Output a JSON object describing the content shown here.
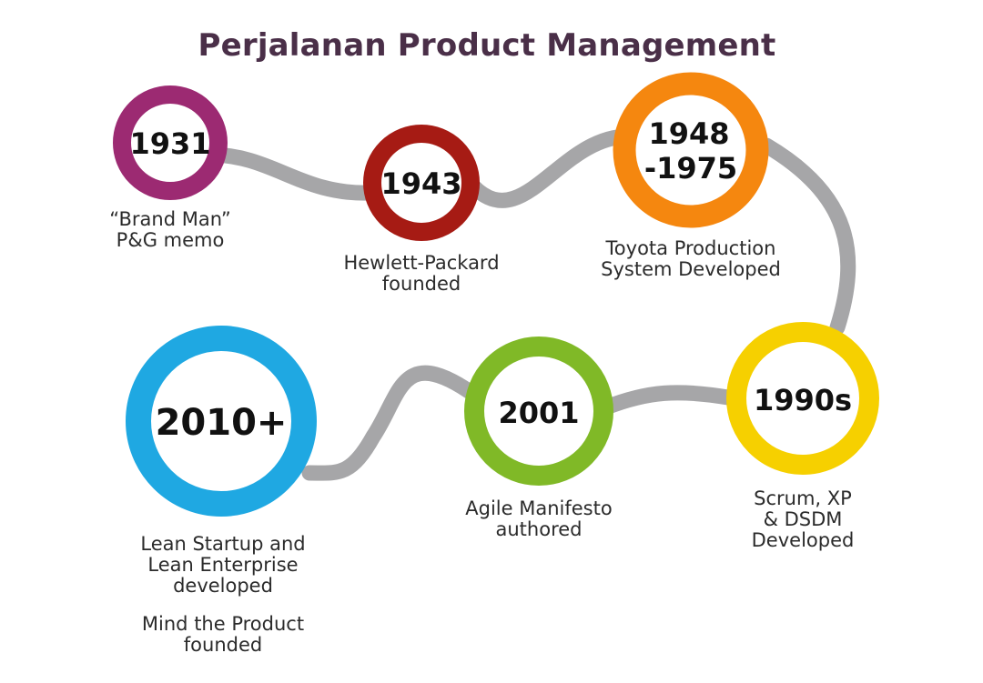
{
  "title": "Perjalanan Product Management",
  "colors": {
    "path": "#a6a6a8",
    "y1931": "#9c2a72",
    "y1943": "#a61b14",
    "y1948": "#f5870f",
    "y1990": "#f6d000",
    "y2001": "#80b927",
    "y2010": "#1fa8e2"
  },
  "milestones": [
    {
      "id": "1931",
      "year_lines": [
        "1931"
      ],
      "caption_lines": [
        "“Brand Man”",
        "P&G memo"
      ]
    },
    {
      "id": "1943",
      "year_lines": [
        "1943"
      ],
      "caption_lines": [
        "Hewlett-Packard",
        "founded"
      ]
    },
    {
      "id": "1948",
      "year_lines": [
        "1948",
        "-1975"
      ],
      "caption_lines": [
        "Toyota Production",
        "System Developed"
      ]
    },
    {
      "id": "1990",
      "year_lines": [
        "1990s"
      ],
      "caption_lines": [
        "Scrum, XP",
        "& DSDM",
        "Developed"
      ]
    },
    {
      "id": "2001",
      "year_lines": [
        "2001"
      ],
      "caption_lines": [
        "Agile Manifesto",
        "authored"
      ]
    },
    {
      "id": "2010",
      "year_lines": [
        "2010+"
      ],
      "caption_lines": [
        "Lean Startup and",
        "Lean Enterprise",
        "developed"
      ],
      "extra_caption_lines": [
        "Mind the Product",
        "founded"
      ]
    }
  ]
}
